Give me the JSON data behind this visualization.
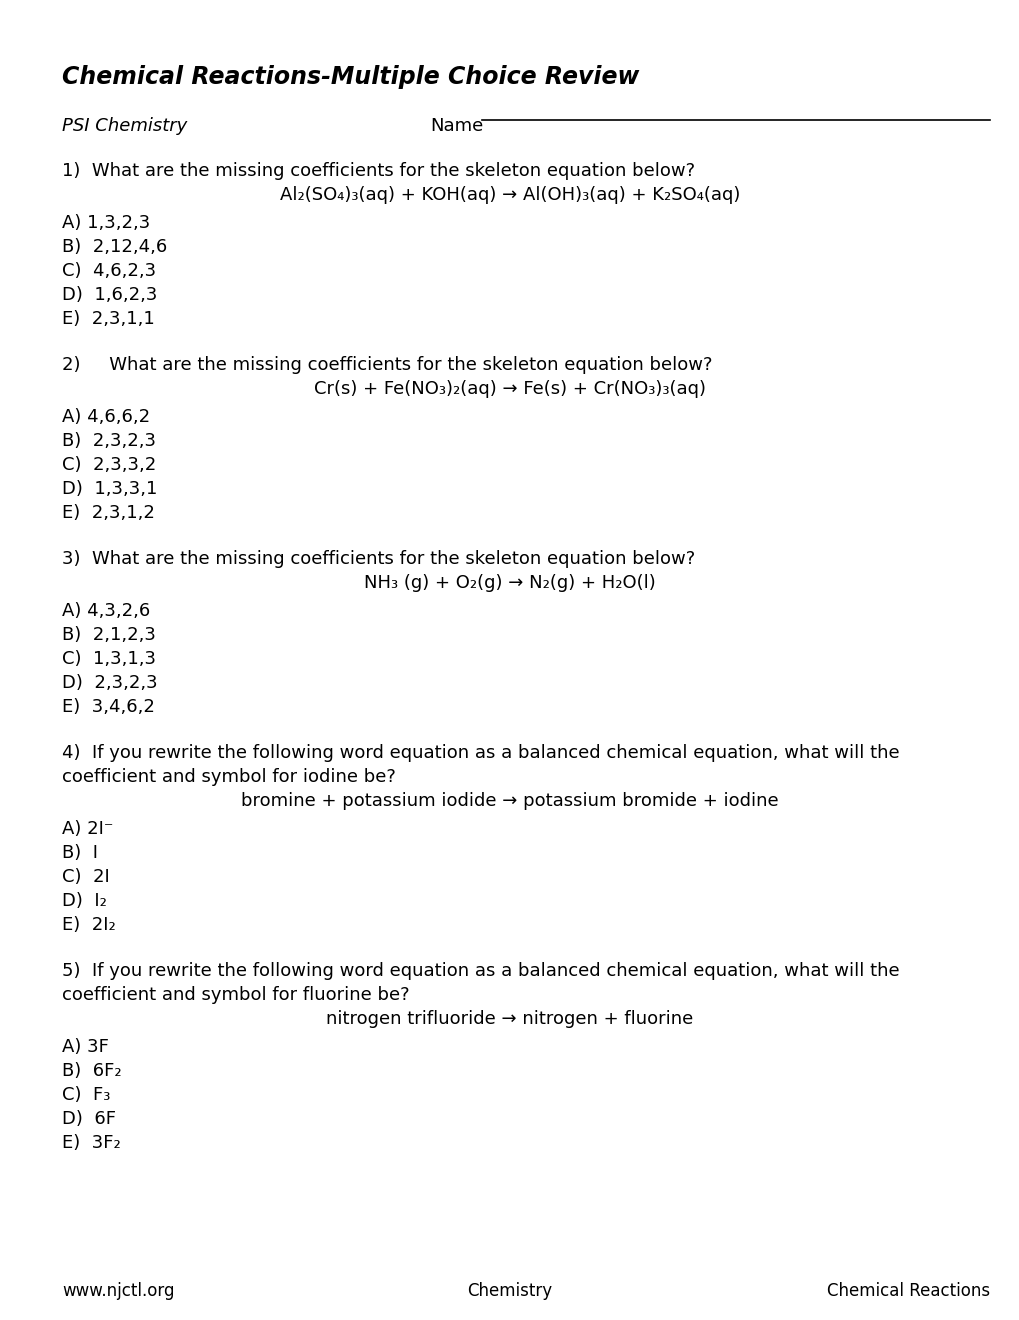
{
  "title": "Chemical Reactions-Multiple Choice Review",
  "subtitle_left": "PSI Chemistry",
  "subtitle_right": "Name",
  "background_color": "#ffffff",
  "text_color": "#000000",
  "footer_left": "www.njctl.org",
  "footer_center": "Chemistry",
  "footer_right": "Chemical Reactions",
  "questions": [
    {
      "number": "1)",
      "text": "What are the missing coefficients for the skeleton equation below?",
      "equation": "Al₂(SO₄)₃(aq) + KOH(aq) → Al(OH)₃(aq) + K₂SO₄(aq)",
      "choices": [
        "A) 1,3,2,3",
        "B)  2,12,4,6",
        "C)  4,6,2,3",
        "D)  1,6,2,3",
        "E)  2,3,1,1"
      ]
    },
    {
      "number": "2)",
      "text": "     What are the missing coefficients for the skeleton equation below?",
      "equation": "Cr(s) + Fe(NO₃)₂(aq) → Fe(s) + Cr(NO₃)₃(aq)",
      "choices": [
        "A) 4,6,6,2",
        "B)  2,3,2,3",
        "C)  2,3,3,2",
        "D)  1,3,3,1",
        "E)  2,3,1,2"
      ]
    },
    {
      "number": "3)",
      "text": "What are the missing coefficients for the skeleton equation below?",
      "equation": "NH₃ (g) + O₂(g) → N₂(g) + H₂O(l)",
      "choices": [
        "A) 4,3,2,6",
        "B)  2,1,2,3",
        "C)  1,3,1,3",
        "D)  2,3,2,3",
        "E)  3,4,6,2"
      ]
    },
    {
      "number": "4)",
      "text": "If you rewrite the following word equation as a balanced chemical equation, what will the\ncoefficient and symbol for iodine be?",
      "equation": "bromine + potassium iodide → potassium bromide + iodine",
      "choices": [
        "A) 2I⁻",
        "B)  I",
        "C)  2I",
        "D)  I₂",
        "E)  2I₂"
      ]
    },
    {
      "number": "5)",
      "text": "If you rewrite the following word equation as a balanced chemical equation, what will the\ncoefficient and symbol for fluorine be?",
      "equation": "nitrogen trifluoride → nitrogen + fluorine",
      "choices": [
        "A) 3F",
        "B)  6F₂",
        "C)  F₃",
        "D)  6F",
        "E)  3F₂"
      ]
    }
  ]
}
